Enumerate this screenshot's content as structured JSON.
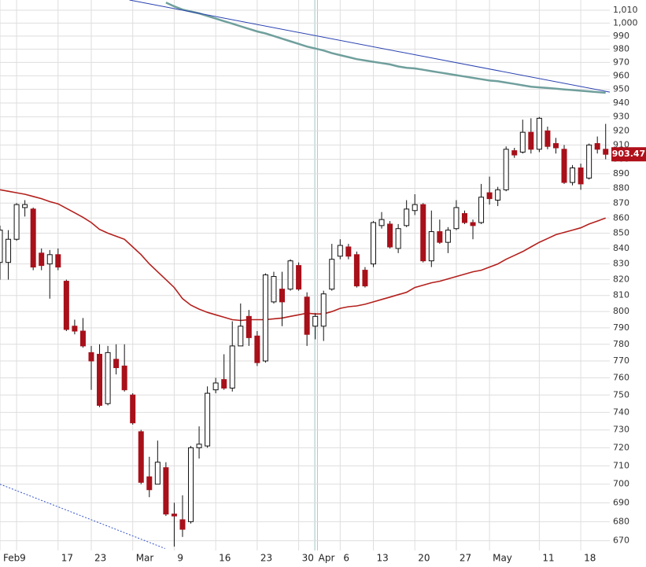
{
  "chart_data": {
    "type": "candlestick",
    "ylog": true,
    "grid": true,
    "ylim": [
      665,
      1018
    ],
    "yticks": [
      670,
      680,
      690,
      700,
      710,
      720,
      730,
      740,
      750,
      760,
      770,
      780,
      790,
      800,
      810,
      820,
      830,
      840,
      850,
      860,
      870,
      880,
      890,
      900,
      910,
      920,
      930,
      940,
      950,
      960,
      970,
      980,
      990,
      {
        "value": 1000,
        "label": "1,000"
      },
      {
        "value": 1010,
        "label": "1,010"
      }
    ],
    "categories": [
      "Feb",
      null,
      "9",
      null,
      null,
      null,
      null,
      "17",
      null,
      null,
      null,
      "23",
      null,
      null,
      null,
      null,
      "Mar",
      null,
      null,
      null,
      null,
      "9",
      null,
      null,
      null,
      null,
      "16",
      null,
      null,
      null,
      null,
      "23",
      null,
      null,
      null,
      null,
      "30",
      null,
      "Apr",
      null,
      null,
      "6",
      null,
      null,
      null,
      "13",
      null,
      null,
      null,
      null,
      "20",
      null,
      null,
      null,
      null,
      "27",
      null,
      null,
      null,
      "May",
      null,
      null,
      null,
      null,
      null,
      "11",
      null,
      null,
      null,
      null,
      "18",
      null,
      null,
      null
    ],
    "open": [
      831,
      831,
      846,
      867,
      866,
      837,
      830,
      836,
      819,
      791,
      788,
      775,
      774,
      745,
      771,
      767,
      750,
      729,
      704,
      700,
      709,
      684,
      681,
      680,
      720,
      721,
      753,
      759,
      754,
      779,
      797,
      785,
      770,
      806,
      814,
      814,
      829,
      809,
      791,
      791,
      814,
      835,
      841,
      836,
      826,
      830,
      855,
      856,
      840,
      855,
      865,
      869,
      832,
      851,
      844,
      853,
      863,
      857,
      857,
      877,
      872,
      879,
      906,
      905,
      919,
      907,
      920,
      911,
      907,
      884,
      894,
      887,
      911,
      907
    ],
    "high": [
      855,
      852,
      870,
      872,
      867,
      840,
      839,
      840,
      820,
      795,
      796,
      779,
      780,
      779,
      780,
      780,
      751,
      730,
      715,
      724,
      712,
      690,
      694,
      721,
      732,
      755,
      760,
      774,
      794,
      805,
      801,
      788,
      824,
      825,
      825,
      833,
      831,
      812,
      799,
      813,
      843,
      846,
      843,
      838,
      828,
      858,
      864,
      858,
      856,
      872,
      876,
      870,
      865,
      859,
      854,
      872,
      865,
      859,
      883,
      888,
      881,
      909,
      908,
      928,
      929,
      930,
      923,
      915,
      910,
      896,
      897,
      911,
      916,
      925
    ],
    "low": [
      820,
      820,
      845,
      861,
      826,
      826,
      808,
      826,
      788,
      786,
      778,
      753,
      743,
      744,
      762,
      752,
      733,
      700,
      693,
      700,
      683,
      667,
      672,
      679,
      714,
      720,
      751,
      753,
      752,
      779,
      779,
      767,
      769,
      805,
      791,
      813,
      813,
      779,
      783,
      782,
      813,
      833,
      833,
      815,
      815,
      828,
      853,
      840,
      837,
      854,
      862,
      831,
      828,
      843,
      837,
      852,
      856,
      846,
      856,
      869,
      868,
      878,
      901,
      904,
      904,
      905,
      907,
      904,
      883,
      882,
      879,
      886,
      904,
      900
    ],
    "close": [
      852,
      846,
      869,
      869,
      828,
      829,
      836,
      828,
      789,
      788,
      779,
      770,
      744,
      775,
      766,
      753,
      734,
      701,
      697,
      712,
      684,
      683,
      676,
      720,
      722,
      751,
      757,
      754,
      779,
      791,
      784,
      769,
      823,
      822,
      806,
      832,
      814,
      786,
      797,
      811,
      833,
      842,
      835,
      816,
      816,
      857,
      859,
      841,
      853,
      866,
      869,
      832,
      851,
      844,
      852,
      867,
      857,
      855,
      874,
      873,
      879,
      907,
      903,
      919,
      907,
      929,
      909,
      908,
      884,
      894,
      883,
      910,
      907,
      903.47
    ],
    "up_color": "#ffffff",
    "down_color": "#a8101a",
    "moving_averages": [
      {
        "color": "#b3201c",
        "values": [
          879,
          878,
          877,
          876,
          874.5,
          873,
          871,
          869.5,
          866.5,
          863.5,
          860.5,
          857,
          852.5,
          850,
          848,
          846,
          841,
          836,
          830,
          825,
          820,
          815,
          808,
          804,
          801.5,
          799.5,
          798,
          796.5,
          795,
          794.5,
          795,
          795,
          795,
          795.5,
          796,
          797,
          798,
          799,
          798.5,
          798.5,
          800,
          802,
          803,
          803.5,
          804.5,
          806,
          807.5,
          809,
          810.5,
          812,
          815,
          816.5,
          818,
          819,
          820.5,
          822,
          823.5,
          825,
          826,
          828,
          830,
          833,
          835.5,
          838,
          841,
          844,
          846.5,
          849,
          850.5,
          852,
          853.5,
          856,
          858,
          860
        ]
      },
      {
        "color": "#6f9f9c",
        "values": [
          null,
          null,
          null,
          null,
          null,
          null,
          null,
          null,
          null,
          null,
          null,
          null,
          null,
          null,
          null,
          null,
          null,
          null,
          null,
          null,
          1016,
          1013,
          1010.5,
          1009,
          1007.5,
          1005.5,
          1003.5,
          1001.5,
          999.5,
          997.5,
          995.5,
          993.5,
          992,
          990,
          988,
          986,
          984,
          982,
          980.5,
          979,
          977,
          975.5,
          974,
          972.5,
          971.5,
          970.5,
          969.5,
          968.5,
          967,
          966,
          965.5,
          964.5,
          963.5,
          962.5,
          961.5,
          960.5,
          959.5,
          958.5,
          957.5,
          956.5,
          956,
          955,
          954,
          953,
          952,
          951.5,
          951,
          950.5,
          950,
          949.5,
          949,
          948.5,
          948,
          947.5
        ]
      }
    ],
    "trendlines": [
      {
        "x": [
          15.6,
          73.5
        ],
        "y": [
          1018,
          948
        ],
        "color": "#2840b0",
        "style": "solid"
      },
      {
        "x": [
          0,
          19.9
        ],
        "y": [
          700,
          666
        ],
        "color": "#3355cc",
        "style": "dotted"
      }
    ],
    "last_price": 903.47,
    "last_price_color": "#b0101a"
  }
}
